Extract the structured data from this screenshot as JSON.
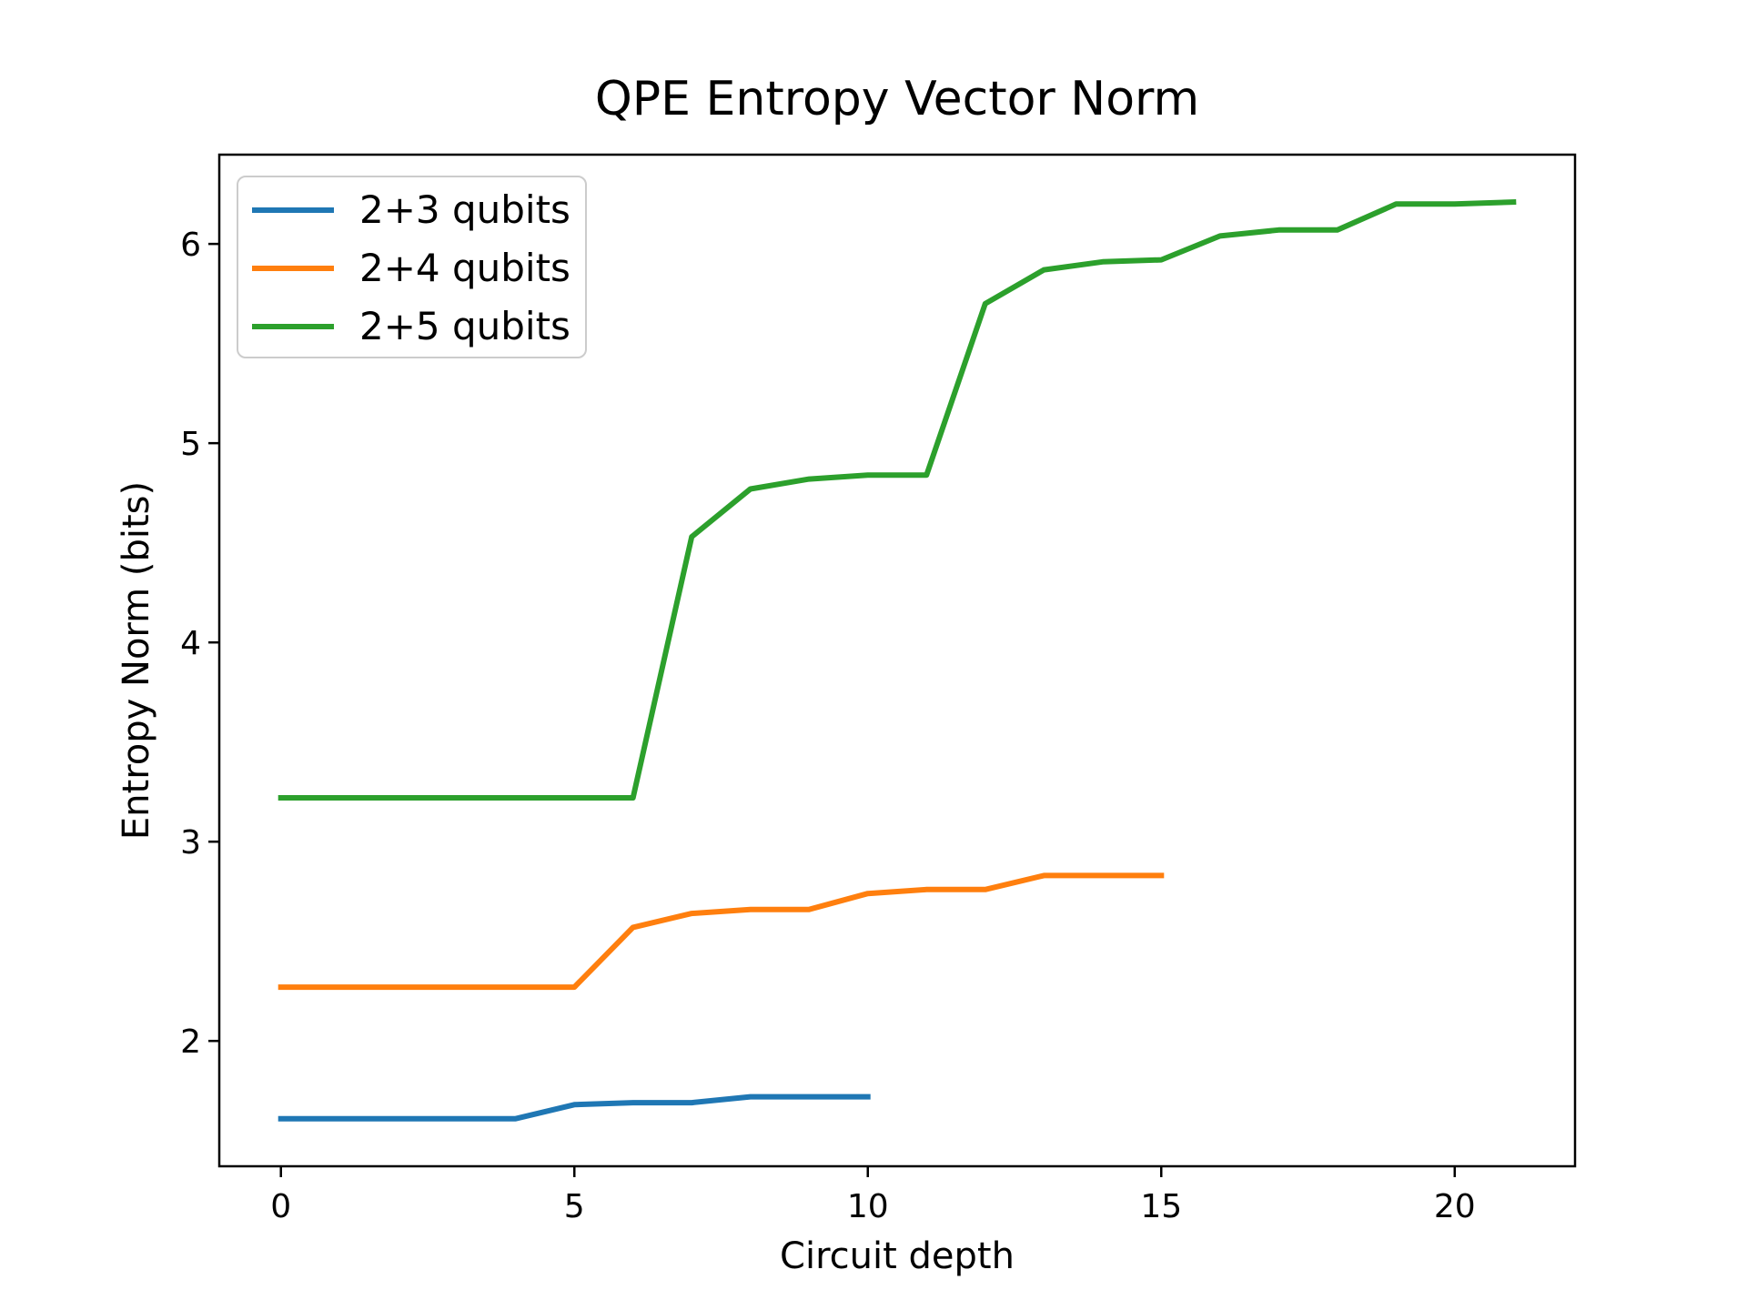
{
  "title": "QPE Entropy Vector Norm",
  "chart_data": {
    "type": "line",
    "title": "QPE Entropy Vector Norm",
    "xlabel": "Circuit depth",
    "ylabel": "Entropy Norm (bits)",
    "xlim": [
      -1.05,
      22.05
    ],
    "ylim": [
      1.371,
      6.448
    ],
    "x_ticks": [
      0,
      5,
      10,
      15,
      20
    ],
    "y_ticks": [
      2,
      3,
      4,
      5,
      6
    ],
    "grid": false,
    "legend_position": "upper left",
    "axis_color": "#000000",
    "series": [
      {
        "name": "2+3 qubits",
        "color": "#1f77b4",
        "x": [
          0,
          1,
          2,
          3,
          4,
          5,
          6,
          7,
          8,
          9,
          10
        ],
        "y": [
          1.61,
          1.61,
          1.61,
          1.61,
          1.61,
          1.68,
          1.69,
          1.69,
          1.72,
          1.72,
          1.72
        ]
      },
      {
        "name": "2+4 qubits",
        "color": "#ff7f0e",
        "x": [
          0,
          1,
          2,
          3,
          4,
          5,
          6,
          7,
          8,
          9,
          10,
          11,
          12,
          13,
          14,
          15
        ],
        "y": [
          2.27,
          2.27,
          2.27,
          2.27,
          2.27,
          2.27,
          2.57,
          2.64,
          2.66,
          2.66,
          2.74,
          2.76,
          2.76,
          2.83,
          2.83,
          2.83
        ]
      },
      {
        "name": "2+5 qubits",
        "color": "#2ca02c",
        "x": [
          0,
          1,
          2,
          3,
          4,
          5,
          6,
          7,
          8,
          9,
          10,
          11,
          12,
          13,
          14,
          15,
          16,
          17,
          18,
          19,
          20,
          21
        ],
        "y": [
          3.22,
          3.22,
          3.22,
          3.22,
          3.22,
          3.22,
          3.22,
          4.53,
          4.77,
          4.82,
          4.84,
          4.84,
          5.7,
          5.87,
          5.91,
          5.92,
          6.04,
          6.07,
          6.07,
          6.2,
          6.2,
          6.21
        ]
      }
    ]
  }
}
